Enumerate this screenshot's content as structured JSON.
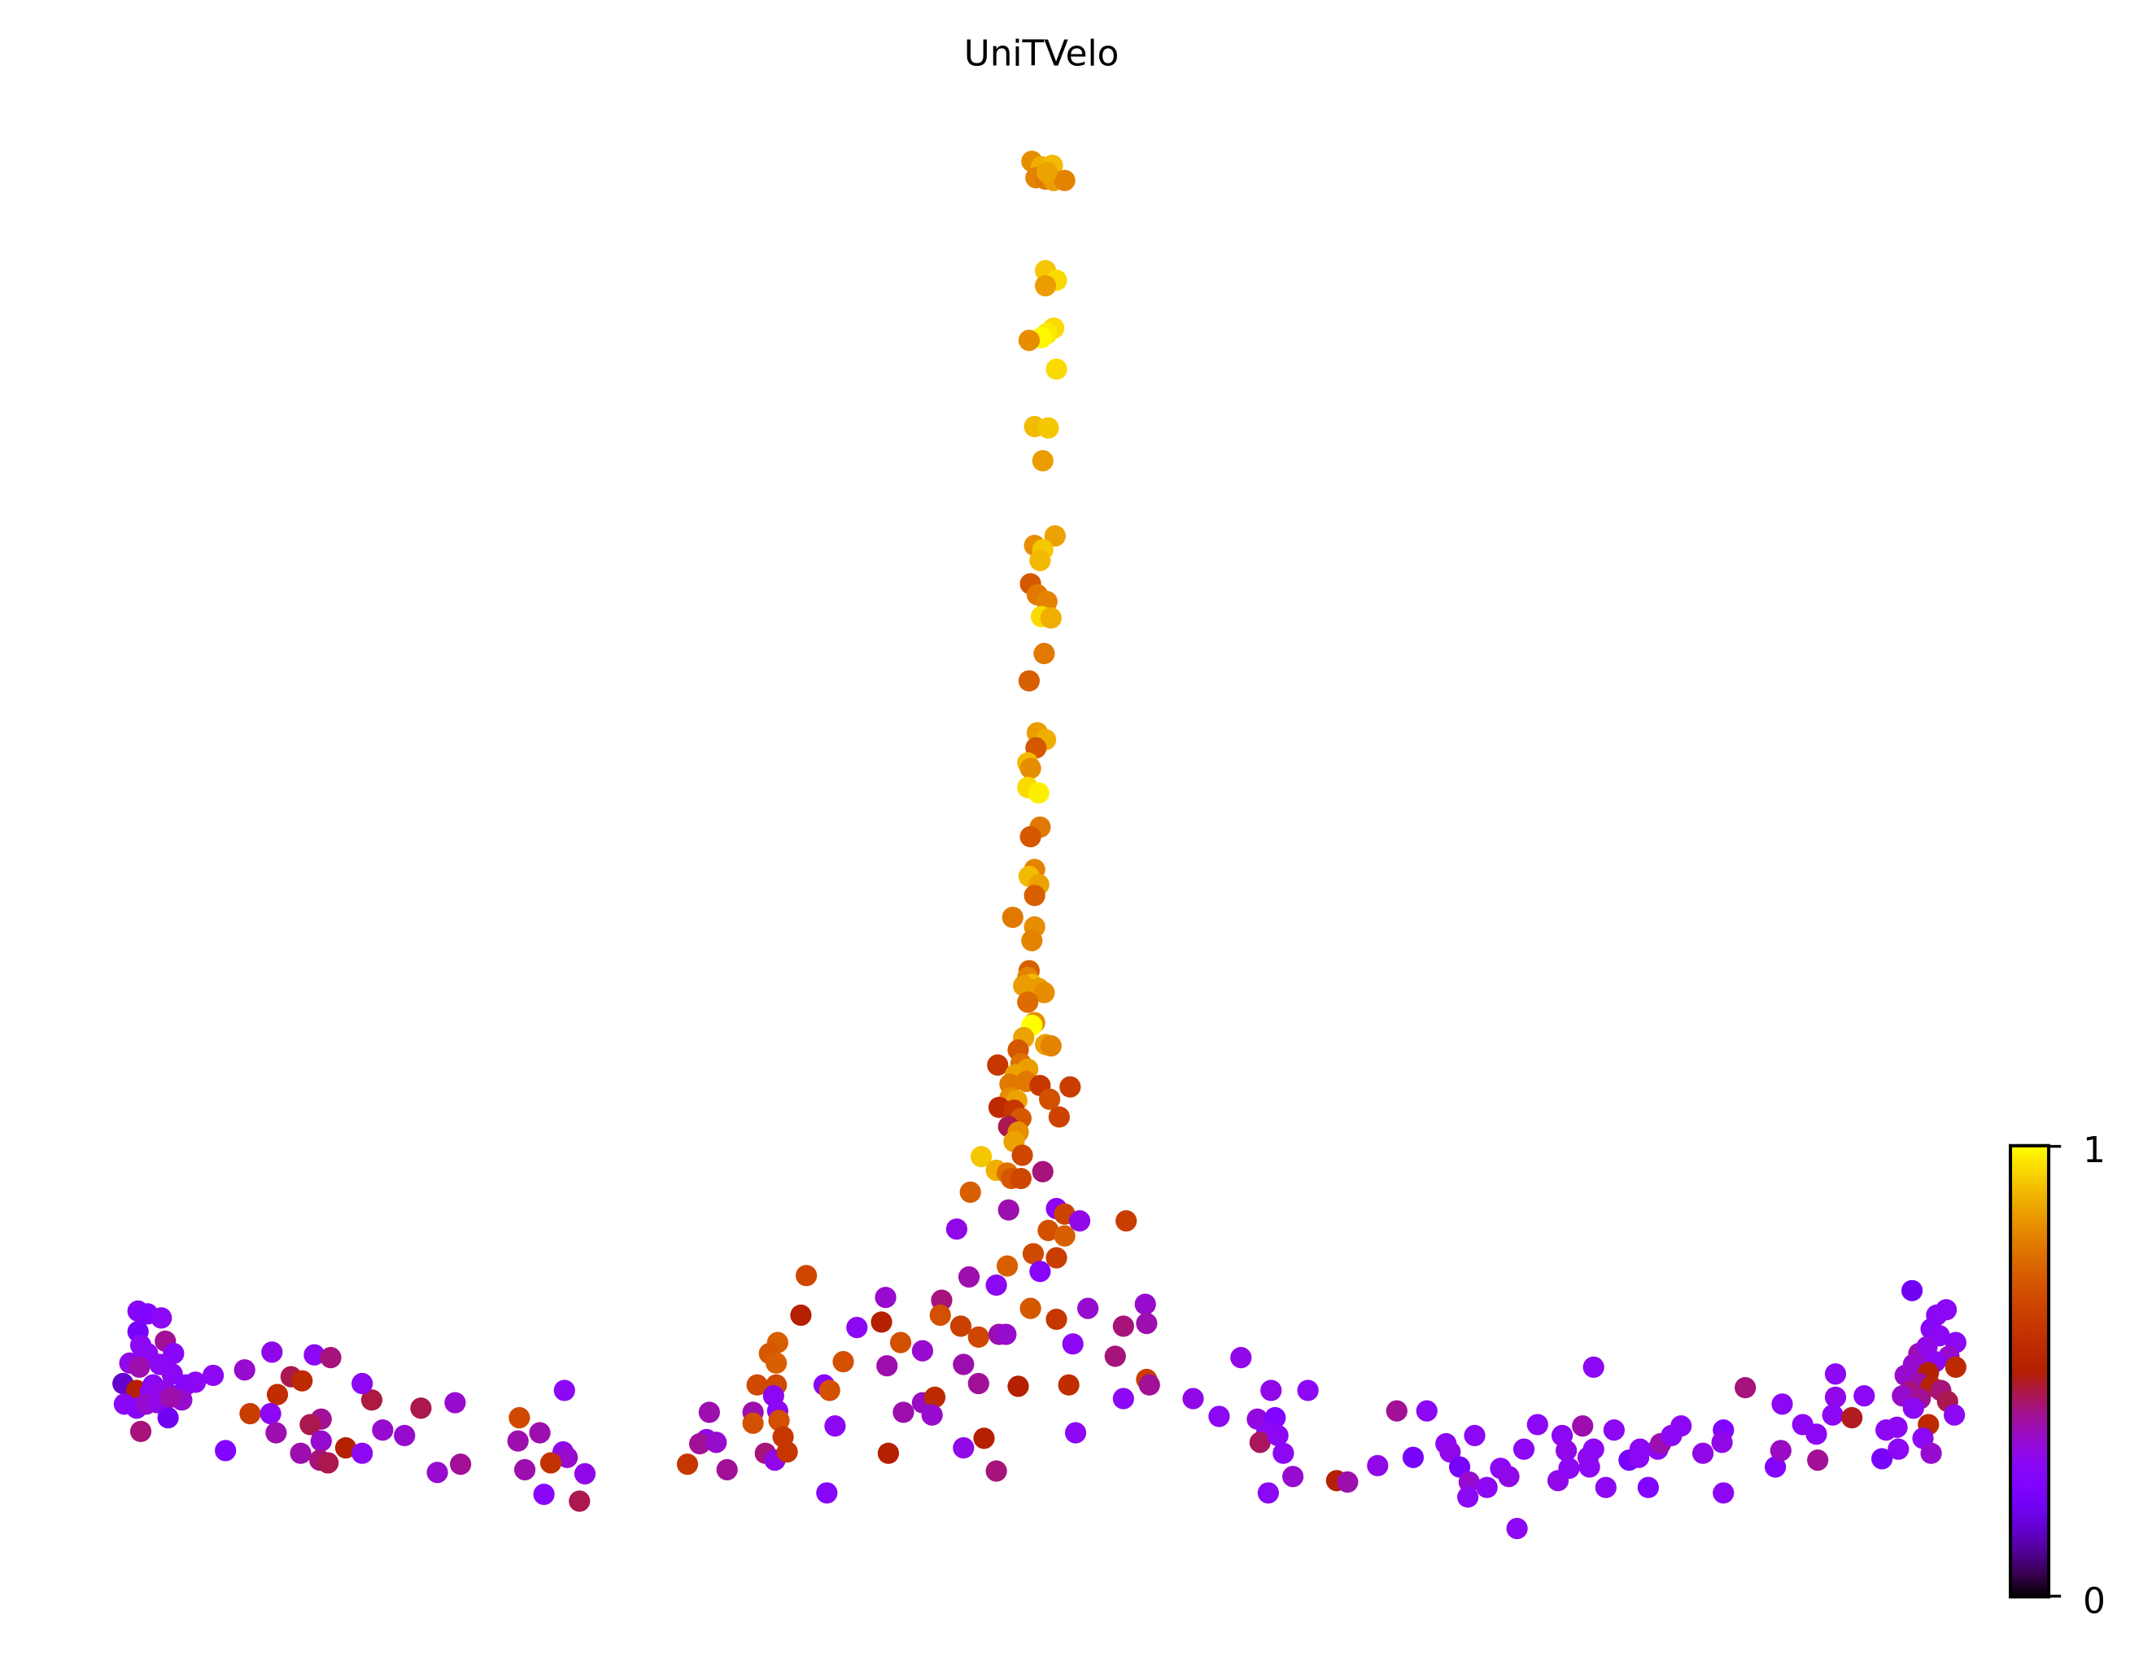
{
  "chart_data": {
    "type": "scatter",
    "title": "UniTVelo",
    "xlabel": "",
    "ylabel": "",
    "axes_visible": false,
    "grid": false,
    "colormap": "gnuplot",
    "color_range": [
      0,
      1
    ],
    "colorbar": {
      "position": "right",
      "ticks": [
        0,
        1
      ],
      "tick_labels": [
        "0",
        "1"
      ]
    },
    "point_radius": 7.8,
    "coordinate_space": [
      1568,
      1212
    ],
    "points": [
      [
        755,
        118,
        0.82
      ],
      [
        762,
        122,
        0.88
      ],
      [
        768,
        124,
        0.95
      ],
      [
        770,
        121,
        0.9
      ],
      [
        758,
        130,
        0.8
      ],
      [
        765,
        131,
        0.78
      ],
      [
        771,
        132,
        0.85
      ],
      [
        779,
        132,
        0.8
      ],
      [
        766,
        126,
        0.86
      ],
      [
        765,
        198,
        0.92
      ],
      [
        773,
        205,
        0.95
      ],
      [
        765,
        209,
        0.85
      ],
      [
        771,
        240,
        0.95
      ],
      [
        766,
        244,
        0.97
      ],
      [
        762,
        247,
        0.99
      ],
      [
        753,
        249,
        0.82
      ],
      [
        773,
        270,
        0.95
      ],
      [
        757,
        312,
        0.9
      ],
      [
        767,
        313,
        0.92
      ],
      [
        763,
        337,
        0.85
      ],
      [
        772,
        392,
        0.86
      ],
      [
        757,
        399,
        0.82
      ],
      [
        763,
        402,
        0.92
      ],
      [
        761,
        410,
        0.9
      ],
      [
        754,
        427,
        0.7
      ],
      [
        759,
        435,
        0.78
      ],
      [
        766,
        440,
        0.8
      ],
      [
        762,
        451,
        0.95
      ],
      [
        769,
        452,
        0.88
      ],
      [
        764,
        478,
        0.78
      ],
      [
        753,
        498,
        0.72
      ],
      [
        759,
        536,
        0.85
      ],
      [
        765,
        541,
        0.88
      ],
      [
        758,
        547,
        0.7
      ],
      [
        752,
        558,
        0.9
      ],
      [
        754,
        562,
        0.82
      ],
      [
        752,
        576,
        0.95
      ],
      [
        760,
        580,
        0.98
      ],
      [
        761,
        605,
        0.78
      ],
      [
        754,
        612,
        0.7
      ],
      [
        757,
        636,
        0.8
      ],
      [
        753,
        641,
        0.9
      ],
      [
        760,
        647,
        0.86
      ],
      [
        757,
        655,
        0.72
      ],
      [
        741,
        671,
        0.78
      ],
      [
        757,
        678,
        0.82
      ],
      [
        755,
        688,
        0.8
      ],
      [
        753,
        710,
        0.72
      ],
      [
        752,
        715,
        0.8
      ],
      [
        755,
        720,
        0.9
      ],
      [
        749,
        721,
        0.85
      ],
      [
        760,
        723,
        0.85
      ],
      [
        764,
        726,
        0.82
      ],
      [
        752,
        733,
        0.75
      ],
      [
        757,
        748,
        0.82
      ],
      [
        755,
        750,
        1.0
      ],
      [
        749,
        759,
        0.86
      ],
      [
        765,
        764,
        0.86
      ],
      [
        769,
        765,
        0.8
      ],
      [
        745,
        768,
        0.7
      ],
      [
        730,
        779,
        0.6
      ],
      [
        747,
        778,
        0.76
      ],
      [
        752,
        782,
        0.85
      ],
      [
        743,
        786,
        0.86
      ],
      [
        751,
        791,
        0.78
      ],
      [
        739,
        793,
        0.78
      ],
      [
        761,
        794,
        0.6
      ],
      [
        768,
        804,
        0.68
      ],
      [
        739,
        803,
        0.82
      ],
      [
        744,
        805,
        0.86
      ],
      [
        783,
        795,
        0.62
      ],
      [
        731,
        810,
        0.55
      ],
      [
        742,
        812,
        0.6
      ],
      [
        747,
        818,
        0.7
      ],
      [
        775,
        817,
        0.64
      ],
      [
        738,
        824,
        0.45
      ],
      [
        745,
        828,
        0.82
      ],
      [
        742,
        835,
        0.86
      ],
      [
        748,
        845,
        0.65
      ],
      [
        718,
        846,
        0.92
      ],
      [
        729,
        856,
        0.88
      ],
      [
        737,
        858,
        0.76
      ],
      [
        740,
        862,
        0.7
      ],
      [
        747,
        862,
        0.65
      ],
      [
        763,
        857,
        0.42
      ],
      [
        710,
        872,
        0.72
      ],
      [
        738,
        885,
        0.38
      ],
      [
        773,
        884,
        0.3
      ],
      [
        779,
        888,
        0.64
      ],
      [
        790,
        893,
        0.32
      ],
      [
        700,
        899,
        0.32
      ],
      [
        767,
        900,
        0.68
      ],
      [
        779,
        904,
        0.72
      ],
      [
        824,
        893,
        0.62
      ],
      [
        709,
        934,
        0.38
      ],
      [
        756,
        917,
        0.66
      ],
      [
        737,
        926,
        0.72
      ],
      [
        729,
        940,
        0.3
      ],
      [
        761,
        930,
        0.28
      ],
      [
        773,
        920,
        0.62
      ],
      [
        590,
        933,
        0.65
      ],
      [
        648,
        949,
        0.35
      ],
      [
        689,
        951,
        0.42
      ],
      [
        586,
        962,
        0.5
      ],
      [
        627,
        971,
        0.3
      ],
      [
        645,
        967,
        0.5
      ],
      [
        688,
        962,
        0.68
      ],
      [
        703,
        970,
        0.63
      ],
      [
        716,
        978,
        0.65
      ],
      [
        731,
        976,
        0.38
      ],
      [
        736,
        976,
        0.35
      ],
      [
        754,
        957,
        0.7
      ],
      [
        773,
        965,
        0.6
      ],
      [
        796,
        957,
        0.35
      ],
      [
        838,
        954,
        0.35
      ],
      [
        839,
        968,
        0.38
      ],
      [
        822,
        970,
        0.42
      ],
      [
        569,
        982,
        0.72
      ],
      [
        563,
        990,
        0.7
      ],
      [
        568,
        997,
        0.72
      ],
      [
        617,
        996,
        0.68
      ],
      [
        659,
        982,
        0.68
      ],
      [
        675,
        988,
        0.35
      ],
      [
        649,
        999,
        0.38
      ],
      [
        705,
        998,
        0.38
      ],
      [
        785,
        983,
        0.3
      ],
      [
        816,
        992,
        0.42
      ],
      [
        554,
        1013,
        0.66
      ],
      [
        568,
        1013,
        0.66
      ],
      [
        566,
        1021,
        0.3
      ],
      [
        603,
        1013,
        0.28
      ],
      [
        607,
        1017,
        0.68
      ],
      [
        716,
        1012,
        0.4
      ],
      [
        745,
        1014,
        0.5
      ],
      [
        782,
        1013,
        0.56
      ],
      [
        839,
        1009,
        0.62
      ],
      [
        841,
        1013,
        0.4
      ],
      [
        822,
        1023,
        0.3
      ],
      [
        519,
        1033,
        0.38
      ],
      [
        551,
        1033,
        0.38
      ],
      [
        569,
        1032,
        0.3
      ],
      [
        551,
        1041,
        0.68
      ],
      [
        570,
        1039,
        0.68
      ],
      [
        573,
        1051,
        0.6
      ],
      [
        560,
        1063,
        0.42
      ],
      [
        567,
        1068,
        0.32
      ],
      [
        576,
        1062,
        0.6
      ],
      [
        611,
        1043,
        0.3
      ],
      [
        661,
        1033,
        0.38
      ],
      [
        675,
        1026,
        0.36
      ],
      [
        684,
        1022,
        0.55
      ],
      [
        682,
        1035,
        0.35
      ],
      [
        720,
        1052,
        0.5
      ],
      [
        705,
        1059,
        0.32
      ],
      [
        650,
        1063,
        0.5
      ],
      [
        729,
        1076,
        0.42
      ],
      [
        787,
        1048,
        0.3
      ],
      [
        503,
        1071,
        0.6
      ],
      [
        532,
        1075,
        0.4
      ],
      [
        517,
        1053,
        0.32
      ],
      [
        512,
        1056,
        0.4
      ],
      [
        524,
        1055,
        0.35
      ],
      [
        605,
        1092,
        0.28
      ],
      [
        380,
        1037,
        0.66
      ],
      [
        379,
        1054,
        0.38
      ],
      [
        395,
        1048,
        0.38
      ],
      [
        413,
        1017,
        0.3
      ],
      [
        412,
        1062,
        0.32
      ],
      [
        415,
        1066,
        0.35
      ],
      [
        403,
        1070,
        0.58
      ],
      [
        384,
        1075,
        0.38
      ],
      [
        428,
        1078,
        0.32
      ],
      [
        398,
        1093,
        0.28
      ],
      [
        424,
        1098,
        0.45
      ],
      [
        333,
        1026,
        0.35
      ],
      [
        308,
        1030,
        0.45
      ],
      [
        272,
        1024,
        0.46
      ],
      [
        265,
        1012,
        0.3
      ],
      [
        280,
        1046,
        0.35
      ],
      [
        296,
        1050,
        0.35
      ],
      [
        320,
        1077,
        0.35
      ],
      [
        337,
        1071,
        0.4
      ],
      [
        199,
        989,
        0.32
      ],
      [
        213,
        1007,
        0.45
      ],
      [
        221,
        1010,
        0.55
      ],
      [
        230,
        991,
        0.3
      ],
      [
        242,
        993,
        0.42
      ],
      [
        235,
        1038,
        0.4
      ],
      [
        227,
        1042,
        0.45
      ],
      [
        235,
        1054,
        0.35
      ],
      [
        220,
        1063,
        0.38
      ],
      [
        234,
        1068,
        0.42
      ],
      [
        240,
        1070,
        0.45
      ],
      [
        253,
        1059,
        0.5
      ],
      [
        265,
        1063,
        0.3
      ],
      [
        179,
        1002,
        0.35
      ],
      [
        203,
        1020,
        0.56
      ],
      [
        183,
        1034,
        0.62
      ],
      [
        198,
        1034,
        0.3
      ],
      [
        202,
        1048,
        0.38
      ],
      [
        165,
        1061,
        0.25
      ],
      [
        101,
        959,
        0.28
      ],
      [
        108,
        961,
        0.25
      ],
      [
        118,
        964,
        0.3
      ],
      [
        101,
        974,
        0.22
      ],
      [
        103,
        984,
        0.3
      ],
      [
        121,
        981,
        0.4
      ],
      [
        127,
        990,
        0.28
      ],
      [
        108,
        990,
        0.3
      ],
      [
        95,
        997,
        0.32
      ],
      [
        102,
        1000,
        0.38
      ],
      [
        117,
        998,
        0.3
      ],
      [
        126,
        1005,
        0.3
      ],
      [
        90,
        1012,
        0.15
      ],
      [
        100,
        1017,
        0.5
      ],
      [
        110,
        1018,
        0.3
      ],
      [
        112,
        1013,
        0.3
      ],
      [
        119,
        1017,
        0.32
      ],
      [
        124,
        1020,
        0.3
      ],
      [
        136,
        1013,
        0.28
      ],
      [
        143,
        1011,
        0.3
      ],
      [
        156,
        1006,
        0.3
      ],
      [
        133,
        1024,
        0.35
      ],
      [
        91,
        1027,
        0.3
      ],
      [
        100,
        1030,
        0.28
      ],
      [
        107,
        1027,
        0.35
      ],
      [
        115,
        1026,
        0.32
      ],
      [
        125,
        1022,
        0.38
      ],
      [
        123,
        1037,
        0.2
      ],
      [
        103,
        1047,
        0.42
      ],
      [
        908,
        993,
        0.32
      ],
      [
        873,
        1023,
        0.32
      ],
      [
        892,
        1036,
        0.3
      ],
      [
        930,
        1017,
        0.32
      ],
      [
        957,
        1017,
        0.3
      ],
      [
        920,
        1038,
        0.33
      ],
      [
        933,
        1037,
        0.25
      ],
      [
        927,
        1047,
        0.3
      ],
      [
        922,
        1055,
        0.44
      ],
      [
        935,
        1050,
        0.3
      ],
      [
        939,
        1063,
        0.3
      ],
      [
        946,
        1080,
        0.35
      ],
      [
        928,
        1092,
        0.3
      ],
      [
        978,
        1083,
        0.5
      ],
      [
        986,
        1084,
        0.38
      ],
      [
        1008,
        1072,
        0.32
      ],
      [
        1022,
        1032,
        0.4
      ],
      [
        1044,
        1032,
        0.3
      ],
      [
        1034,
        1066,
        0.22
      ],
      [
        1058,
        1056,
        0.3
      ],
      [
        1061,
        1062,
        0.32
      ],
      [
        1068,
        1073,
        0.22
      ],
      [
        1075,
        1084,
        0.35
      ],
      [
        1074,
        1095,
        0.3
      ],
      [
        1088,
        1088,
        0.3
      ],
      [
        1079,
        1050,
        0.3
      ],
      [
        1098,
        1074,
        0.3
      ],
      [
        1104,
        1080,
        0.32
      ],
      [
        1110,
        1118,
        0.3
      ],
      [
        1115,
        1060,
        0.3
      ],
      [
        1125,
        1042,
        0.3
      ],
      [
        1143,
        1050,
        0.3
      ],
      [
        1146,
        1061,
        0.32
      ],
      [
        1140,
        1083,
        0.32
      ],
      [
        1148,
        1074,
        0.3
      ],
      [
        1158,
        1043,
        0.38
      ],
      [
        1162,
        1066,
        0.32
      ],
      [
        1166,
        1060,
        0.3
      ],
      [
        1163,
        1073,
        0.3
      ],
      [
        1166,
        1000,
        0.3
      ],
      [
        1175,
        1088,
        0.3
      ],
      [
        1181,
        1046,
        0.3
      ],
      [
        1192,
        1068,
        0.22
      ],
      [
        1199,
        1066,
        0.3
      ],
      [
        1200,
        1060,
        0.3
      ],
      [
        1206,
        1088,
        0.25
      ],
      [
        1213,
        1060,
        0.3
      ],
      [
        1215,
        1056,
        0.38
      ],
      [
        1223,
        1050,
        0.3
      ],
      [
        1230,
        1043,
        0.3
      ],
      [
        1246,
        1063,
        0.32
      ],
      [
        1261,
        1046,
        0.25
      ],
      [
        1260,
        1055,
        0.32
      ],
      [
        1261,
        1092,
        0.3
      ],
      [
        1277,
        1015,
        0.42
      ],
      [
        1304,
        1027,
        0.3
      ],
      [
        1299,
        1073,
        0.26
      ],
      [
        1303,
        1061,
        0.36
      ],
      [
        1319,
        1042,
        0.3
      ],
      [
        1329,
        1049,
        0.3
      ],
      [
        1330,
        1068,
        0.4
      ],
      [
        1343,
        1005,
        0.3
      ],
      [
        1343,
        1022,
        0.32
      ],
      [
        1341,
        1035,
        0.3
      ],
      [
        1355,
        1037,
        0.48
      ],
      [
        1364,
        1021,
        0.3
      ],
      [
        1399,
        944,
        0.2
      ],
      [
        1424,
        958,
        0.3
      ],
      [
        1417,
        962,
        0.3
      ],
      [
        1413,
        972,
        0.28
      ],
      [
        1419,
        977,
        0.3
      ],
      [
        1431,
        982,
        0.3
      ],
      [
        1404,
        990,
        0.38
      ],
      [
        1410,
        985,
        0.32
      ],
      [
        1426,
        992,
        0.35
      ],
      [
        1400,
        998,
        0.35
      ],
      [
        1416,
        996,
        0.3
      ],
      [
        1431,
        1000,
        0.55
      ],
      [
        1411,
        1004,
        0.5
      ],
      [
        1394,
        1006,
        0.35
      ],
      [
        1404,
        1012,
        0.38
      ],
      [
        1397,
        1018,
        0.42
      ],
      [
        1413,
        1014,
        0.52
      ],
      [
        1392,
        1021,
        0.35
      ],
      [
        1405,
        1023,
        0.4
      ],
      [
        1420,
        1017,
        0.42
      ],
      [
        1425,
        1025,
        0.45
      ],
      [
        1400,
        1030,
        0.3
      ],
      [
        1430,
        1035,
        0.3
      ],
      [
        1411,
        1042,
        0.55
      ],
      [
        1380,
        1046,
        0.3
      ],
      [
        1388,
        1044,
        0.3
      ],
      [
        1377,
        1067,
        0.22
      ],
      [
        1389,
        1060,
        0.3
      ],
      [
        1407,
        1052,
        0.3
      ],
      [
        1413,
        1063,
        0.35
      ]
    ]
  },
  "plot": {
    "title": "UniTVelo"
  },
  "colorbar": {
    "max_label": "1",
    "min_label": "0"
  }
}
